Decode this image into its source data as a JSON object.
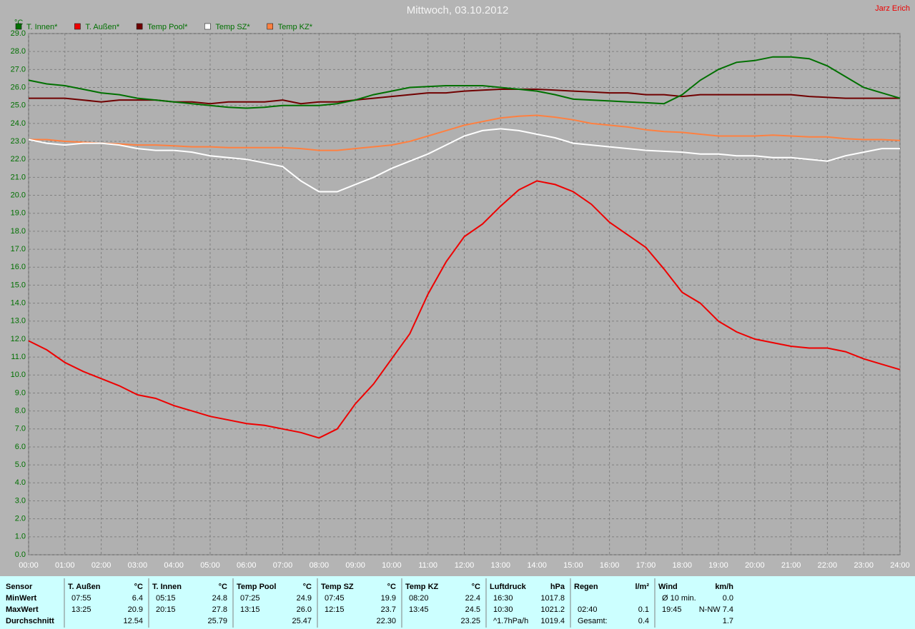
{
  "chart_data": {
    "type": "line",
    "title": "Mittwoch, 03.10.2012",
    "author": "Jarz Erich",
    "y_unit": "°C",
    "x": [
      0,
      0.5,
      1,
      1.5,
      2,
      2.5,
      3,
      3.5,
      4,
      4.5,
      5,
      5.5,
      6,
      6.5,
      7,
      7.5,
      8,
      8.5,
      9,
      9.5,
      10,
      10.5,
      11,
      11.5,
      12,
      12.5,
      13,
      13.5,
      14,
      14.5,
      15,
      15.5,
      16,
      16.5,
      17,
      17.5,
      18,
      18.5,
      19,
      19.5,
      20,
      20.5,
      21,
      21.5,
      22,
      22.5,
      23,
      23.5,
      24
    ],
    "xlim": [
      0,
      24
    ],
    "xticks": [
      {
        "value": 0,
        "label": "00:00"
      },
      {
        "value": 1,
        "label": "01:00"
      },
      {
        "value": 2,
        "label": "02:00"
      },
      {
        "value": 3,
        "label": "03:00"
      },
      {
        "value": 4,
        "label": "04:00"
      },
      {
        "value": 5,
        "label": "05:00"
      },
      {
        "value": 6,
        "label": "06:00"
      },
      {
        "value": 7,
        "label": "07:00"
      },
      {
        "value": 8,
        "label": "08:00"
      },
      {
        "value": 9,
        "label": "09:00"
      },
      {
        "value": 10,
        "label": "10:00"
      },
      {
        "value": 11,
        "label": "11:00"
      },
      {
        "value": 12,
        "label": "12:00"
      },
      {
        "value": 13,
        "label": "13:00"
      },
      {
        "value": 14,
        "label": "14:00"
      },
      {
        "value": 15,
        "label": "15:00"
      },
      {
        "value": 16,
        "label": "16:00"
      },
      {
        "value": 17,
        "label": "17:00"
      },
      {
        "value": 18,
        "label": "18:00"
      },
      {
        "value": 19,
        "label": "19:00"
      },
      {
        "value": 20,
        "label": "20:00"
      },
      {
        "value": 21,
        "label": "21:00"
      },
      {
        "value": 22,
        "label": "22:00"
      },
      {
        "value": 23,
        "label": "23:00"
      },
      {
        "value": 24,
        "label": "24:00"
      }
    ],
    "ylim": [
      0,
      29
    ],
    "yticks": [
      {
        "value": 0,
        "label": "0.0"
      },
      {
        "value": 1,
        "label": "1.0"
      },
      {
        "value": 2,
        "label": "2.0"
      },
      {
        "value": 3,
        "label": "3.0"
      },
      {
        "value": 4,
        "label": "4.0"
      },
      {
        "value": 5,
        "label": "5.0"
      },
      {
        "value": 6,
        "label": "6.0"
      },
      {
        "value": 7,
        "label": "7.0"
      },
      {
        "value": 8,
        "label": "8.0"
      },
      {
        "value": 9,
        "label": "9.0"
      },
      {
        "value": 10,
        "label": "10.0"
      },
      {
        "value": 11,
        "label": "11.0"
      },
      {
        "value": 12,
        "label": "12.0"
      },
      {
        "value": 13,
        "label": "13.0"
      },
      {
        "value": 14,
        "label": "14.0"
      },
      {
        "value": 15,
        "label": "15.0"
      },
      {
        "value": 16,
        "label": "16.0"
      },
      {
        "value": 17,
        "label": "17.0"
      },
      {
        "value": 18,
        "label": "18.0"
      },
      {
        "value": 19,
        "label": "19.0"
      },
      {
        "value": 20,
        "label": "20.0"
      },
      {
        "value": 21,
        "label": "21.0"
      },
      {
        "value": 22,
        "label": "22.0"
      },
      {
        "value": 23,
        "label": "23.0"
      },
      {
        "value": 24,
        "label": "24.0"
      },
      {
        "value": 25,
        "label": "25.0"
      },
      {
        "value": 26,
        "label": "26.0"
      },
      {
        "value": 27,
        "label": "27.0"
      },
      {
        "value": 28,
        "label": "28.0"
      },
      {
        "value": 29,
        "label": "29.0"
      }
    ],
    "grid": true,
    "series": [
      {
        "name": "T. Innen*",
        "color": "#007000",
        "values": [
          26.4,
          26.2,
          26.1,
          25.9,
          25.7,
          25.6,
          25.4,
          25.3,
          25.2,
          25.1,
          25.0,
          24.9,
          24.85,
          24.9,
          25.0,
          25.0,
          25.0,
          25.1,
          25.3,
          25.6,
          25.8,
          26.0,
          26.05,
          26.1,
          26.1,
          26.1,
          26.0,
          25.9,
          25.8,
          25.6,
          25.35,
          25.3,
          25.25,
          25.2,
          25.15,
          25.1,
          25.6,
          26.4,
          27.0,
          27.4,
          27.5,
          27.7,
          27.7,
          27.6,
          27.2,
          26.6,
          26.0,
          25.7,
          25.4
        ]
      },
      {
        "name": "T. Außen*",
        "color": "#ee0000",
        "values": [
          11.9,
          11.4,
          10.7,
          10.2,
          9.8,
          9.4,
          8.9,
          8.7,
          8.3,
          8.0,
          7.7,
          7.5,
          7.3,
          7.2,
          7.0,
          6.8,
          6.5,
          7.0,
          8.4,
          9.5,
          10.9,
          12.3,
          14.5,
          16.3,
          17.7,
          18.4,
          19.4,
          20.3,
          20.8,
          20.6,
          20.2,
          19.5,
          18.5,
          17.8,
          17.1,
          15.9,
          14.6,
          14.0,
          13.0,
          12.4,
          12.0,
          11.8,
          11.6,
          11.5,
          11.5,
          11.3,
          10.9,
          10.6,
          10.3
        ]
      },
      {
        "name": "Temp Pool*",
        "color": "#700000",
        "values": [
          25.4,
          25.4,
          25.4,
          25.3,
          25.2,
          25.3,
          25.3,
          25.3,
          25.2,
          25.2,
          25.1,
          25.2,
          25.2,
          25.2,
          25.3,
          25.1,
          25.2,
          25.2,
          25.3,
          25.4,
          25.5,
          25.6,
          25.7,
          25.7,
          25.8,
          25.85,
          25.9,
          25.9,
          25.9,
          25.85,
          25.8,
          25.75,
          25.7,
          25.7,
          25.6,
          25.6,
          25.5,
          25.6,
          25.6,
          25.6,
          25.6,
          25.6,
          25.6,
          25.5,
          25.45,
          25.4,
          25.4,
          25.4,
          25.4
        ]
      },
      {
        "name": "Temp SZ*",
        "color": "#ffffff",
        "values": [
          23.1,
          22.9,
          22.8,
          22.9,
          22.9,
          22.8,
          22.6,
          22.5,
          22.5,
          22.4,
          22.2,
          22.1,
          22.0,
          21.8,
          21.6,
          20.8,
          20.2,
          20.2,
          20.6,
          21.0,
          21.5,
          21.9,
          22.3,
          22.8,
          23.3,
          23.6,
          23.7,
          23.6,
          23.4,
          23.2,
          22.9,
          22.8,
          22.7,
          22.6,
          22.5,
          22.45,
          22.4,
          22.3,
          22.3,
          22.2,
          22.2,
          22.1,
          22.1,
          22.0,
          21.9,
          22.2,
          22.4,
          22.6,
          22.6
        ]
      },
      {
        "name": "Temp KZ*",
        "color": "#ff8040",
        "values": [
          23.1,
          23.1,
          23.0,
          22.95,
          22.9,
          22.85,
          22.8,
          22.8,
          22.75,
          22.7,
          22.7,
          22.65,
          22.65,
          22.65,
          22.65,
          22.6,
          22.5,
          22.5,
          22.6,
          22.7,
          22.8,
          23.0,
          23.3,
          23.6,
          23.9,
          24.1,
          24.3,
          24.4,
          24.45,
          24.35,
          24.2,
          24.0,
          23.9,
          23.8,
          23.65,
          23.55,
          23.5,
          23.4,
          23.3,
          23.3,
          23.3,
          23.35,
          23.3,
          23.25,
          23.25,
          23.15,
          23.1,
          23.1,
          23.05
        ]
      }
    ]
  },
  "table": {
    "row_labels": [
      "Sensor",
      "MinWert",
      "MaxWert",
      "Durchschnitt"
    ],
    "groups": [
      {
        "name": "T. Außen",
        "unit": "°C",
        "rows": [
          [
            "07:55",
            "6.4"
          ],
          [
            "13:25",
            "20.9"
          ],
          [
            null,
            "12.54"
          ]
        ]
      },
      {
        "name": "T. Innen",
        "unit": "°C",
        "rows": [
          [
            "05:15",
            "24.8"
          ],
          [
            "20:15",
            "27.8"
          ],
          [
            null,
            "25.79"
          ]
        ]
      },
      {
        "name": "Temp Pool",
        "unit": "°C",
        "rows": [
          [
            "07:25",
            "24.9"
          ],
          [
            "13:15",
            "26.0"
          ],
          [
            null,
            "25.47"
          ]
        ]
      },
      {
        "name": "Temp SZ",
        "unit": "°C",
        "rows": [
          [
            "07:45",
            "19.9"
          ],
          [
            "12:15",
            "23.7"
          ],
          [
            null,
            "22.30"
          ]
        ]
      },
      {
        "name": "Temp KZ",
        "unit": "°C",
        "rows": [
          [
            "08:20",
            "22.4"
          ],
          [
            "13:45",
            "24.5"
          ],
          [
            null,
            "23.25"
          ]
        ]
      },
      {
        "name": "Luftdruck",
        "unit": "hPa",
        "rows": [
          [
            "16:30",
            "1017.8"
          ],
          [
            "10:30",
            "1021.2"
          ],
          [
            "^1.7hPa/h",
            "1019.4"
          ]
        ]
      },
      {
        "name": "Regen",
        "unit": "l/m²",
        "rows": [
          [
            null,
            null
          ],
          [
            "02:40",
            "0.1"
          ],
          [
            "Gesamt:",
            "0.4"
          ]
        ]
      },
      {
        "name": "Wind",
        "unit": "km/h",
        "rows": [
          [
            "Ø 10 min.",
            "0.0"
          ],
          [
            "19:45",
            "N-NW 7.4"
          ],
          [
            null,
            "1.7"
          ]
        ]
      }
    ]
  }
}
